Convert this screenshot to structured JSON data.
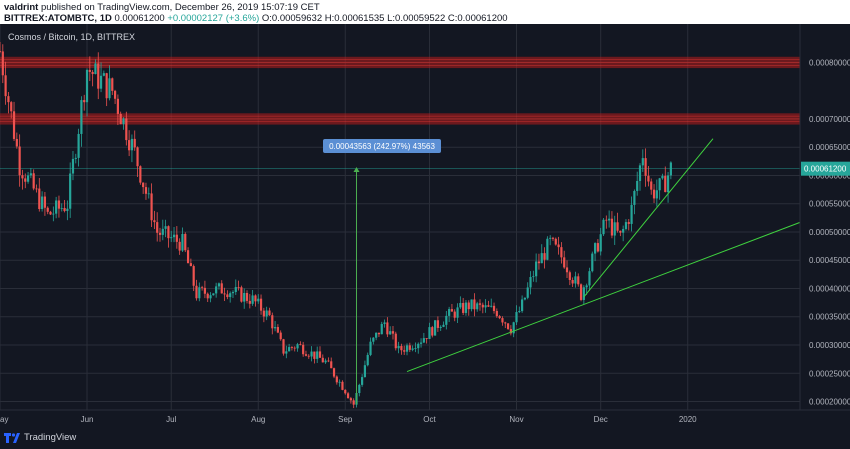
{
  "header": {
    "author": "valdrint",
    "published_text": "published on TradingView.com, December 26, 2019 15:07:19 CET",
    "symbol": "BITTREX:ATOMBTC, 1D",
    "last": "0.00061200",
    "change": "+0.00002127 (+3.6%)",
    "o_label": "O:",
    "o": "0.00059632",
    "h_label": "H:",
    "h": "0.00061535",
    "l_label": "L:",
    "l": "0.00059522",
    "c_label": "C:",
    "c": "0.00061200"
  },
  "footer": {
    "brand": "TradingView",
    "logo_icon": "tradingview-logo-icon"
  },
  "colors": {
    "background": "#131722",
    "grid": "#2a2e39",
    "up": "#26a69a",
    "down": "#ef5350",
    "zone": "#b71c1c",
    "trendline": "#3fd13f",
    "measure": "#4caf50",
    "measure_label": "#5b8fd4",
    "price_label": "#26a69a"
  },
  "chart_data": {
    "type": "candlestick",
    "title": "Cosmos / Bitcoin, 1D, BITTREX",
    "y_axis": {
      "ticks": [
        "0.00020000",
        "0.00025000",
        "0.00030000",
        "0.00035000",
        "0.00040000",
        "0.00045000",
        "0.00050000",
        "0.00055000",
        "0.00060000",
        "0.00065000",
        "0.00070000",
        "0.00080000"
      ],
      "tick_values": [
        0.0002,
        0.00025,
        0.0003,
        0.00035,
        0.0004,
        0.00045,
        0.0005,
        0.00055,
        0.0006,
        0.00065,
        0.0007,
        0.0008
      ],
      "range": [
        0.000185,
        0.000868
      ]
    },
    "x_axis": {
      "labels": [
        "ay",
        "Jun",
        "Jul",
        "Aug",
        "Sep",
        "Oct",
        "Nov",
        "Dec",
        "2020"
      ],
      "label_dates": [
        "2019-05-01",
        "2019-06-01",
        "2019-07-01",
        "2019-08-01",
        "2019-09-01",
        "2019-10-01",
        "2019-11-01",
        "2019-12-01",
        "2020-01-01"
      ],
      "range": [
        "2019-05-01",
        "2020-02-10"
      ]
    },
    "grid": true,
    "current_price": {
      "value": 0.000612,
      "label": "0.00061200"
    },
    "resistance_zones": [
      {
        "from": 0.00079,
        "to": 0.00081
      },
      {
        "from": 0.00069,
        "to": 0.00071
      }
    ],
    "measure": {
      "start_date": "2019-09-05",
      "end_date": "2019-09-05",
      "from": 0.000195,
      "to": 0.000615,
      "label": "0.00043563 (242.97%) 43563"
    },
    "trendlines": [
      {
        "from": {
          "date": "2019-09-23",
          "price": 0.000253
        },
        "to": {
          "date": "2020-02-10",
          "price": 0.000517
        }
      },
      {
        "from": {
          "date": "2019-11-25",
          "price": 0.000385
        },
        "to": {
          "date": "2020-01-10",
          "price": 0.000665
        }
      }
    ],
    "key_points": [
      {
        "date": "2019-05-01",
        "close": 0.00082
      },
      {
        "date": "2019-05-08",
        "close": 0.00062
      },
      {
        "date": "2019-05-18",
        "close": 0.00053
      },
      {
        "date": "2019-05-25",
        "close": 0.00055
      },
      {
        "date": "2019-06-01",
        "close": 0.00079
      },
      {
        "date": "2019-06-10",
        "close": 0.00075
      },
      {
        "date": "2019-06-18",
        "close": 0.00064
      },
      {
        "date": "2019-06-26",
        "close": 0.0005
      },
      {
        "date": "2019-07-05",
        "close": 0.00048
      },
      {
        "date": "2019-07-10",
        "close": 0.00039
      },
      {
        "date": "2019-07-20",
        "close": 0.0004
      },
      {
        "date": "2019-07-30",
        "close": 0.00038
      },
      {
        "date": "2019-08-05",
        "close": 0.00035
      },
      {
        "date": "2019-08-10",
        "close": 0.00029
      },
      {
        "date": "2019-08-15",
        "close": 0.0003
      },
      {
        "date": "2019-08-25",
        "close": 0.00027
      },
      {
        "date": "2019-09-01",
        "close": 0.00022
      },
      {
        "date": "2019-09-04",
        "close": 0.000195
      },
      {
        "date": "2019-09-10",
        "close": 0.0003
      },
      {
        "date": "2019-09-15",
        "close": 0.00034
      },
      {
        "date": "2019-09-20",
        "close": 0.00029
      },
      {
        "date": "2019-09-28",
        "close": 0.00031
      },
      {
        "date": "2019-10-07",
        "close": 0.00035
      },
      {
        "date": "2019-10-15",
        "close": 0.00037
      },
      {
        "date": "2019-10-25",
        "close": 0.00036
      },
      {
        "date": "2019-10-30",
        "close": 0.00033
      },
      {
        "date": "2019-11-03",
        "close": 0.00037
      },
      {
        "date": "2019-11-08",
        "close": 0.00044
      },
      {
        "date": "2019-11-13",
        "close": 0.00048
      },
      {
        "date": "2019-11-18",
        "close": 0.00045
      },
      {
        "date": "2019-11-24",
        "close": 0.00039
      },
      {
        "date": "2019-11-30",
        "close": 0.00048
      },
      {
        "date": "2019-12-03",
        "close": 0.00052
      },
      {
        "date": "2019-12-08",
        "close": 0.00049
      },
      {
        "date": "2019-12-12",
        "close": 0.00054
      },
      {
        "date": "2019-12-16",
        "close": 0.00064
      },
      {
        "date": "2019-12-19",
        "close": 0.00057
      },
      {
        "date": "2019-12-23",
        "close": 0.00058
      },
      {
        "date": "2019-12-26",
        "close": 0.000612
      }
    ]
  }
}
